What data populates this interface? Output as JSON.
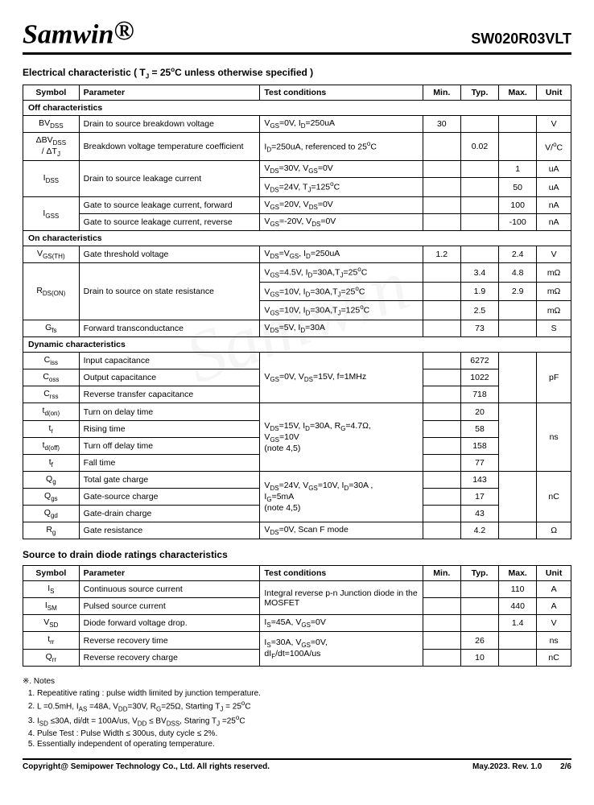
{
  "header": {
    "brand": "Samwin",
    "reg": "®",
    "part": "SW020R03VLT"
  },
  "section1_title": "Electrical characteristic ( T_J = 25°C unless otherwise specified )",
  "cols": [
    "Symbol",
    "Parameter",
    "Test conditions",
    "Min.",
    "Typ.",
    "Max.",
    "Unit"
  ],
  "group_off": "Off characteristics",
  "rows_off": [
    {
      "sym": "BV_DSS",
      "param": "Drain to source breakdown voltage",
      "cond": "V_GS=0V, I_D=250uA",
      "min": "30",
      "typ": "",
      "max": "",
      "unit": "V"
    },
    {
      "sym": "ΔBV_DSS / ΔT_J",
      "param": "Breakdown voltage temperature coefficient",
      "cond": "I_D=250uA, referenced to 25°C",
      "min": "",
      "typ": "0.02",
      "max": "",
      "unit": "V/°C"
    },
    {
      "sym": "I_DSS",
      "param": "Drain to source leakage current",
      "cond": "V_DS=30V, V_GS=0V",
      "min": "",
      "typ": "",
      "max": "1",
      "unit": "uA",
      "rowspan": 2
    },
    {
      "cond": "V_DS=24V, T_J=125°C",
      "min": "",
      "typ": "",
      "max": "50",
      "unit": "uA"
    },
    {
      "sym": "I_GSS",
      "param_fwd": "Gate to source leakage current, forward",
      "cond": "V_GS=20V, V_DS=0V",
      "min": "",
      "typ": "",
      "max": "100",
      "unit": "nA",
      "rowspan": 2
    },
    {
      "param_rev": "Gate to source leakage current, reverse",
      "cond": "V_GS=-20V, V_DS=0V",
      "min": "",
      "typ": "",
      "max": "-100",
      "unit": "nA"
    }
  ],
  "group_on": "On characteristics",
  "rows_on": [
    {
      "sym": "V_GS(TH)",
      "param": "Gate threshold voltage",
      "cond": "V_DS=V_GS, I_D=250uA",
      "min": "1.2",
      "typ": "",
      "max": "2.4",
      "unit": "V"
    },
    {
      "sym": "R_DS(ON)",
      "param": "Drain to source on state resistance",
      "cond": "V_GS=4.5V, I_D=30A,T_J=25°C",
      "min": "",
      "typ": "3.4",
      "max": "4.8",
      "unit": "mΩ",
      "rowspan": 3
    },
    {
      "cond": "V_GS=10V, I_D=30A,T_J=25°C",
      "min": "",
      "typ": "1.9",
      "max": "2.9",
      "unit": "mΩ"
    },
    {
      "cond": "V_GS=10V, I_D=30A,T_J=125°C",
      "min": "",
      "typ": "2.5",
      "max": "",
      "unit": "mΩ"
    },
    {
      "sym": "G_fs",
      "param": "Forward transconductance",
      "cond": "V_DS=5V, I_D=30A",
      "min": "",
      "typ": "73",
      "max": "",
      "unit": "S"
    }
  ],
  "group_dyn": "Dynamic characteristics",
  "rows_dyn": [
    {
      "sym": "C_iss",
      "param": "Input capacitance",
      "cond": "V_GS=0V, V_DS=15V, f=1MHz",
      "min": "",
      "typ": "6272",
      "max": "",
      "unit": "pF",
      "cond_rowspan": 3,
      "unit_rowspan": 3,
      "max_rowspan": 3
    },
    {
      "sym": "C_oss",
      "param": "Output capacitance",
      "min": "",
      "typ": "1022"
    },
    {
      "sym": "C_rss",
      "param": "Reverse transfer capacitance",
      "min": "",
      "typ": "718"
    },
    {
      "sym": "t_d(on)",
      "param": "Turn on delay time",
      "cond": "V_DS=15V, I_D=30A, R_G=4.7Ω, V_GS=10V (note 4,5)",
      "min": "",
      "typ": "20",
      "max": "",
      "unit": "ns",
      "cond_rowspan": 4,
      "unit_rowspan": 4,
      "max_rowspan": 4
    },
    {
      "sym": "t_r",
      "param": "Rising time",
      "min": "",
      "typ": "58"
    },
    {
      "sym": "t_d(off)",
      "param": "Turn off delay time",
      "min": "",
      "typ": "158"
    },
    {
      "sym": "t_f",
      "param": "Fall time",
      "min": "",
      "typ": "77"
    },
    {
      "sym": "Q_g",
      "param": "Total gate charge",
      "cond": "V_DS=24V, V_GS=10V, I_D=30A , I_G=5mA (note 4,5)",
      "min": "",
      "typ": "143",
      "max": "",
      "unit": "nC",
      "cond_rowspan": 3,
      "unit_rowspan": 3,
      "max_rowspan": 3
    },
    {
      "sym": "Q_gs",
      "param": "Gate-source charge",
      "min": "",
      "typ": "17"
    },
    {
      "sym": "Q_gd",
      "param": "Gate-drain charge",
      "min": "",
      "typ": "43"
    },
    {
      "sym": "R_g",
      "param": "Gate resistance",
      "cond": "V_DS=0V, Scan F mode",
      "min": "",
      "typ": "4.2",
      "max": "",
      "unit": "Ω"
    }
  ],
  "section2_title": "Source to drain diode ratings characteristics",
  "rows_diode": [
    {
      "sym": "I_S",
      "param": "Continuous source current",
      "cond": "Integral reverse p-n Junction diode in the MOSFET",
      "min": "",
      "typ": "",
      "max": "110",
      "unit": "A",
      "cond_rowspan": 2
    },
    {
      "sym": "I_SM",
      "param": "Pulsed source current",
      "min": "",
      "typ": "",
      "max": "440",
      "unit": "A"
    },
    {
      "sym": "V_SD",
      "param": "Diode forward voltage drop.",
      "cond": "I_S=45A, V_GS=0V",
      "min": "",
      "typ": "",
      "max": "1.4",
      "unit": "V"
    },
    {
      "sym": "t_rr",
      "param": "Reverse recovery time",
      "cond": "I_S=30A, V_GS=0V, dI_F/dt=100A/us",
      "min": "",
      "typ": "26",
      "max": "",
      "unit": "ns",
      "cond_rowspan": 2
    },
    {
      "sym": "Q_rr",
      "param": "Reverse recovery charge",
      "min": "",
      "typ": "10",
      "max": "",
      "unit": "nC"
    }
  ],
  "notes_title": "※. Notes",
  "notes": [
    "Repeatitive rating : pulse width limited by junction temperature.",
    "L =0.5mH, I_AS =48A, V_DD=30V, R_G=25Ω, Starting T_J = 25°C",
    "I_SD ≤30A, di/dt = 100A/us, V_DD ≤ BV_DSS, Staring T_J =25°C",
    "Pulse Test : Pulse Width ≤ 300us, duty cycle ≤ 2%.",
    "Essentially independent of operating temperature."
  ],
  "footer": {
    "left": "Copyright@ Semipower Technology Co., Ltd. All rights reserved.",
    "mid": "May.2023. Rev. 1.0",
    "right": "2/6"
  }
}
